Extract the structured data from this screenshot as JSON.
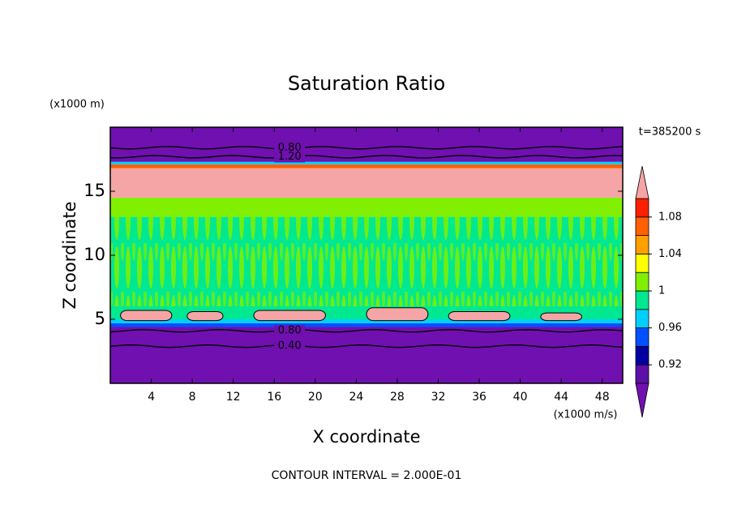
{
  "chart_data": {
    "type": "contour",
    "title": "Saturation Ratio",
    "x_label": "X coordinate",
    "y_label": "Z coordinate",
    "x_unit": "(x1000 m/s)",
    "y_unit": "(x1000 m)",
    "time_label": "t=385200 s",
    "footer": "CONTOUR INTERVAL = 2.000E-01",
    "xlim": [
      0,
      50
    ],
    "xticks": [
      4,
      8,
      12,
      16,
      20,
      24,
      28,
      32,
      36,
      40,
      44,
      48
    ],
    "ylim": [
      0,
      20
    ],
    "yticks": [
      5,
      10,
      15
    ],
    "layers": [
      {
        "zlim": [
          0,
          4.4
        ],
        "color": "#7010b0"
      },
      {
        "zlim": [
          4.4,
          4.7
        ],
        "color": "#0050ff"
      },
      {
        "zlim": [
          4.7,
          5.0
        ],
        "color": "#00d0ff"
      },
      {
        "zlim": [
          5.0,
          13
        ],
        "color": "#00e890"
      },
      {
        "zlim": [
          13,
          14.5
        ],
        "color": "#80f000"
      },
      {
        "zlim": [
          14.5,
          16.8
        ],
        "color": "#f5a5a5"
      },
      {
        "zlim": [
          16.8,
          17.1
        ],
        "color": "#ff6000"
      },
      {
        "zlim": [
          17.1,
          17.3
        ],
        "color": "#00d0ff"
      },
      {
        "zlim": [
          17.3,
          20
        ],
        "color": "#7010b0"
      }
    ],
    "patches": [
      {
        "xlim": [
          1,
          6
        ],
        "zlim": [
          4.9,
          5.7
        ]
      },
      {
        "xlim": [
          7.5,
          11
        ],
        "zlim": [
          4.9,
          5.6
        ]
      },
      {
        "xlim": [
          14,
          21
        ],
        "zlim": [
          4.9,
          5.7
        ]
      },
      {
        "xlim": [
          25,
          31
        ],
        "zlim": [
          4.9,
          5.9
        ]
      },
      {
        "xlim": [
          33,
          39
        ],
        "zlim": [
          4.9,
          5.6
        ]
      },
      {
        "xlim": [
          42,
          46
        ],
        "zlim": [
          4.9,
          5.5
        ]
      }
    ],
    "patch_color": "#f5a5a5",
    "contours": [
      {
        "value": 0.8,
        "label": "0.80",
        "x": 17.5,
        "z": 18.4
      },
      {
        "value": 1.2,
        "label": "1.20",
        "x": 17.5,
        "z": 17.7
      },
      {
        "value": 0.8,
        "label": "0.80",
        "x": 17.5,
        "z": 4.1
      },
      {
        "value": 0.4,
        "label": "0.40",
        "x": 17.5,
        "z": 2.9
      }
    ],
    "colorbar": {
      "levels": [
        0.9,
        0.92,
        0.94,
        0.96,
        0.98,
        1,
        1.02,
        1.04,
        1.06,
        1.08,
        1.1
      ],
      "colors": [
        "#5c10a8",
        "#0000a0",
        "#0050ff",
        "#00d0ff",
        "#00e890",
        "#80f000",
        "#ffff00",
        "#ffa000",
        "#ff6000",
        "#ff2000"
      ],
      "under_color": "#7010b0",
      "over_color": "#f5a5a5",
      "ticks": [
        0.92,
        0.96,
        1,
        1.04,
        1.08
      ]
    }
  }
}
